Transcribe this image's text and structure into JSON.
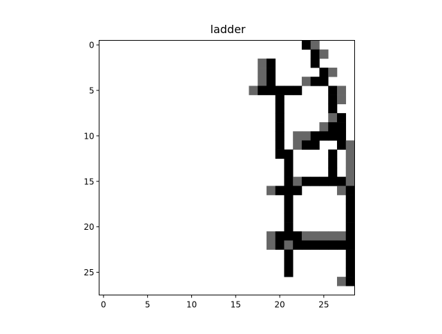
{
  "chart_data": {
    "type": "heatmap",
    "title": "ladder",
    "xlabel": "",
    "ylabel": "",
    "colormap": "gray_r",
    "value_range": [
      0,
      1
    ],
    "x_ticks": [
      0,
      5,
      10,
      15,
      20,
      25
    ],
    "y_ticks": [
      0,
      5,
      10,
      15,
      20,
      25
    ],
    "xlim": [
      -0.5,
      27.5
    ],
    "ylim": [
      27.5,
      -0.5
    ],
    "grid": false,
    "colors": {
      "dark": "#000000",
      "mid": "#666666",
      "light": "#ffffff",
      "axis": "#000000"
    },
    "rows": [
      "00000000000000000000000120000",
      "00000000000000000000000012000",
      "00000000000000000021000010000",
      "00000000000000000021000001200",
      "00000000000000000021000211000",
      "00000000000000000211111000120",
      "00000000000000000000100000120",
      "00000000000000000000100000100",
      "00000000000000000000100000210",
      "00000000000000000000100002110",
      "00000000000000000000102211110",
      "00000000000000000000102110012",
      "00000000000000000000110000102",
      "00000000000000000000010000102",
      "00000000000000000000010000102",
      "00000000000000000000012111112",
      "00000000000000000002111000021",
      "00000000000000000000010000001",
      "00000000000000000000010000001",
      "00000000000000000000010000001",
      "00000000000000000000010000001",
      "00000000000000000002111222221",
      "00000000000000000002121111111",
      "00000000000000000000010000001",
      "00000000000000000000010000001",
      "00000000000000000000010000001",
      "00000000000000000000000000021",
      "00000000000000000000000000000"
    ]
  }
}
